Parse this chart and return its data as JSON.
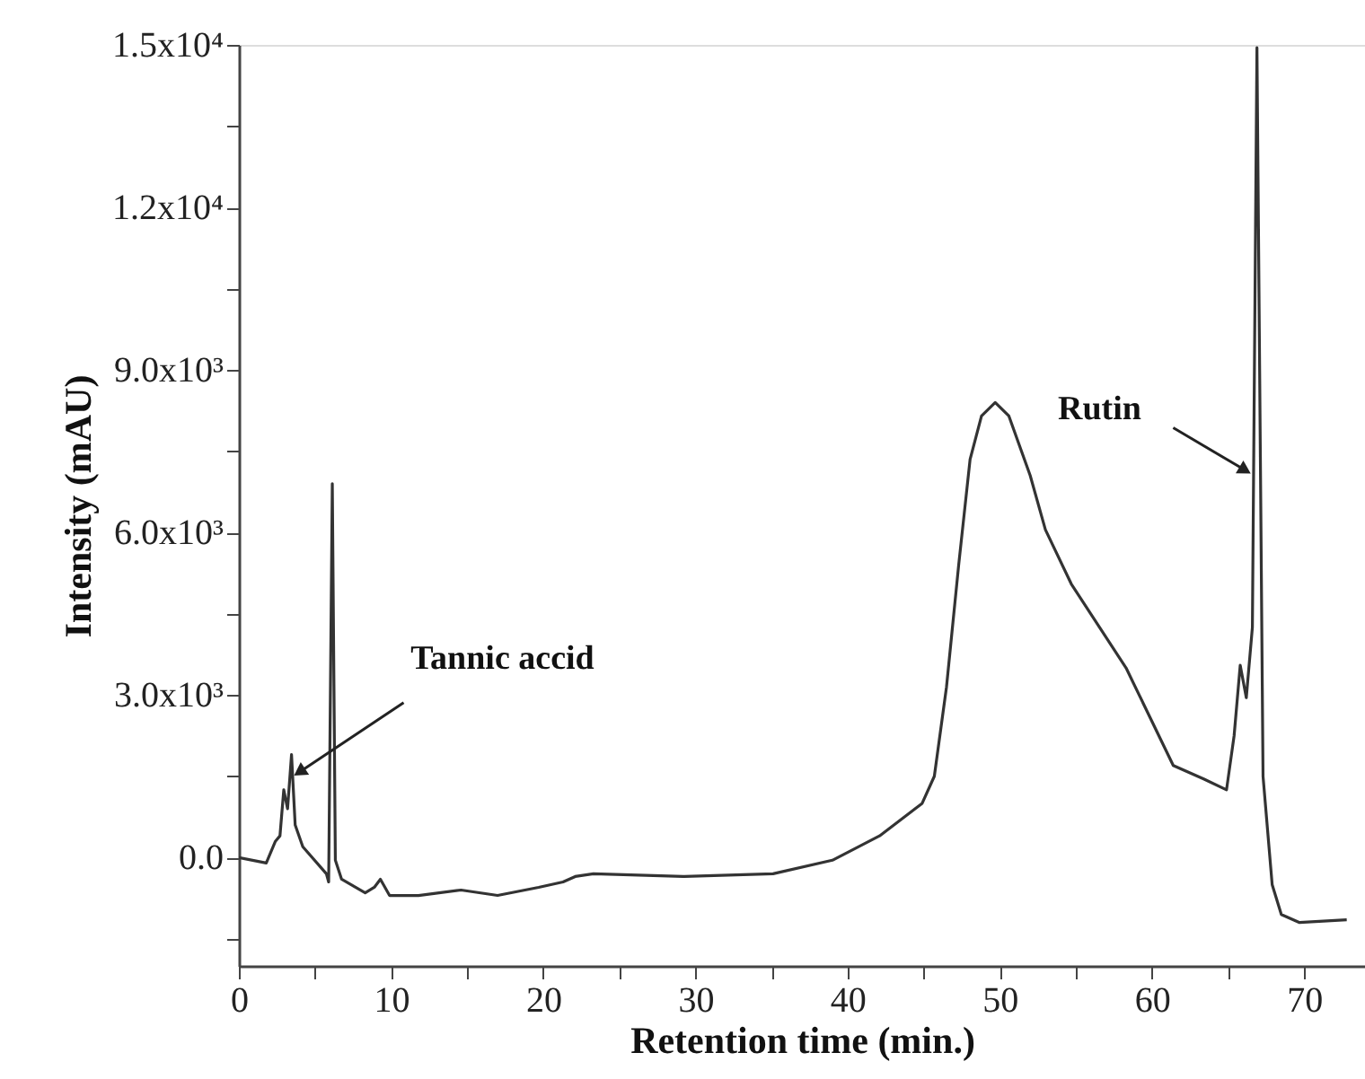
{
  "chart_data": {
    "type": "line",
    "xlabel": "Retention time (min.)",
    "ylabel": "Intensity (mAU)",
    "xlim": [
      0,
      74
    ],
    "ylim": [
      -2000,
      15000
    ],
    "xticks": [
      0,
      {
        "value": 5,
        "label": null
      },
      10,
      {
        "value": 15,
        "label": null
      },
      20,
      {
        "value": 25,
        "label": null
      },
      30,
      {
        "value": 35,
        "label": null
      },
      40,
      {
        "value": 45,
        "label": null
      },
      50,
      {
        "value": 55,
        "label": null
      },
      60,
      {
        "value": 65,
        "label": null
      },
      70
    ],
    "yticks": [
      {
        "value": -1500,
        "label": null
      },
      {
        "value": 0,
        "label": "0.0"
      },
      {
        "value": 1500,
        "label": null
      },
      {
        "value": 3000,
        "label": "3.0x10³"
      },
      {
        "value": 4500,
        "label": null
      },
      {
        "value": 6000,
        "label": "6.0x10³"
      },
      {
        "value": 7500,
        "label": null
      },
      {
        "value": 9000,
        "label": "9.0x10³"
      },
      {
        "value": 10500,
        "label": null
      },
      {
        "value": 12000,
        "label": "1.2x10⁴"
      },
      {
        "value": 13500,
        "label": null
      },
      {
        "value": 15000,
        "label": "1.5x10⁴"
      }
    ],
    "grid": false,
    "marker": "none",
    "line_style": "solid",
    "annotations": [
      {
        "text": "Tannic accid",
        "x": 4.1,
        "y": 1600
      },
      {
        "text": "Rutin",
        "x": 66.0,
        "y": 7170
      }
    ],
    "series": [
      {
        "color": "#333333",
        "x": [
          0,
          1.8,
          2.4,
          2.7,
          2.95,
          3.2,
          3.46,
          3.7,
          4.2,
          5.75,
          5.9,
          6.14,
          6.34,
          6.75,
          8.3,
          8.9,
          9.3,
          9.9,
          11.8,
          14.6,
          17,
          19.7,
          21.3,
          22.1,
          23.3,
          29.2,
          35.1,
          39.0,
          42.1,
          44.9,
          45.7,
          46.5,
          47.3,
          48.05,
          48.8,
          49.7,
          50.6,
          52.0,
          53.0,
          54.7,
          58.3,
          61.4,
          63.4,
          64.9,
          65.4,
          65.8,
          66.2,
          66.6,
          66.9,
          67.3,
          67.9,
          68.5,
          69.7,
          72.8
        ],
        "values": [
          0,
          -100,
          300,
          400,
          1250,
          900,
          1900,
          600,
          200,
          -300,
          -450,
          6900,
          -50,
          -400,
          -650,
          -550,
          -400,
          -700,
          -700,
          -600,
          -700,
          -550,
          -450,
          -350,
          -300,
          -350,
          -300,
          -50,
          400,
          1000,
          1500,
          3150,
          5400,
          7350,
          8150,
          8400,
          8150,
          7050,
          6050,
          5050,
          3500,
          1700,
          1450,
          1250,
          2250,
          3550,
          2950,
          4250,
          14950,
          1500,
          -500,
          -1050,
          -1200,
          -1150
        ]
      }
    ]
  }
}
